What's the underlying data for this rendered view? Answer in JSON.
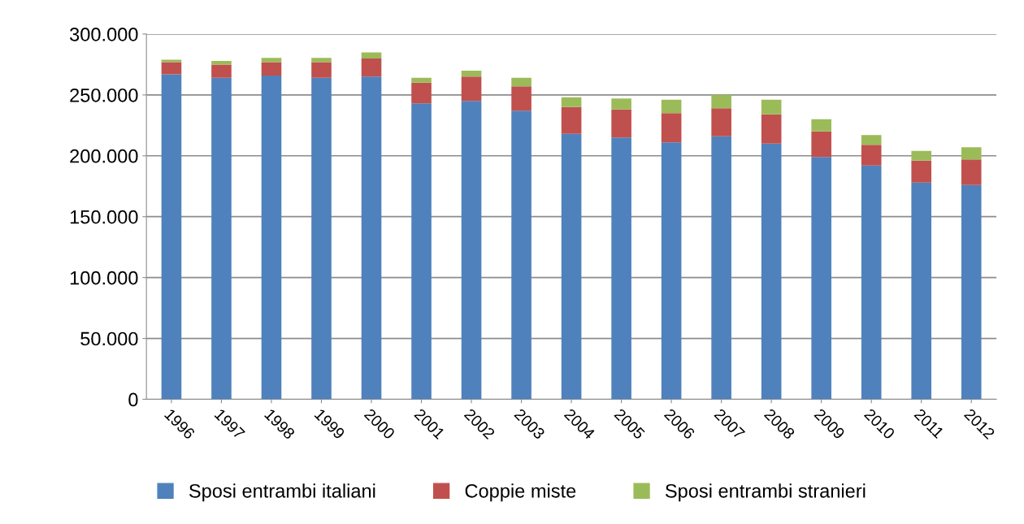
{
  "chart_data": {
    "type": "bar",
    "stacked": true,
    "categories": [
      "1996",
      "1997",
      "1998",
      "1999",
      "2000",
      "2001",
      "2002",
      "2003",
      "2004",
      "2005",
      "2006",
      "2007",
      "2008",
      "2009",
      "2010",
      "2011",
      "2012"
    ],
    "series": [
      {
        "name": "Sposi entrambi italiani",
        "color": "#4f81bd",
        "values": [
          267000,
          264000,
          266000,
          264000,
          265000,
          243000,
          245000,
          237000,
          218000,
          215000,
          211000,
          216000,
          210000,
          199000,
          192000,
          178000,
          176000
        ]
      },
      {
        "name": "Coppie miste",
        "color": "#c0504d",
        "values": [
          10000,
          11000,
          11000,
          13000,
          15000,
          17000,
          20000,
          20000,
          22000,
          23000,
          24000,
          23000,
          24000,
          21000,
          17000,
          18000,
          21000
        ]
      },
      {
        "name": "Sposi entrambi stranieri",
        "color": "#9bbb59",
        "values": [
          2000,
          3000,
          3500,
          3500,
          5000,
          4000,
          5000,
          7000,
          8000,
          9000,
          11000,
          11000,
          12000,
          10000,
          8000,
          8000,
          10000
        ]
      }
    ],
    "ylim": [
      0,
      300000
    ],
    "yticks": [
      {
        "value": 0,
        "label": "0"
      },
      {
        "value": 50000,
        "label": "50.000"
      },
      {
        "value": 100000,
        "label": "100.000"
      },
      {
        "value": 150000,
        "label": "150.000"
      },
      {
        "value": 200000,
        "label": "200.000"
      },
      {
        "value": 250000,
        "label": "250.000"
      },
      {
        "value": 300000,
        "label": "300.000"
      }
    ],
    "grid": "y",
    "legend": "bottom"
  }
}
